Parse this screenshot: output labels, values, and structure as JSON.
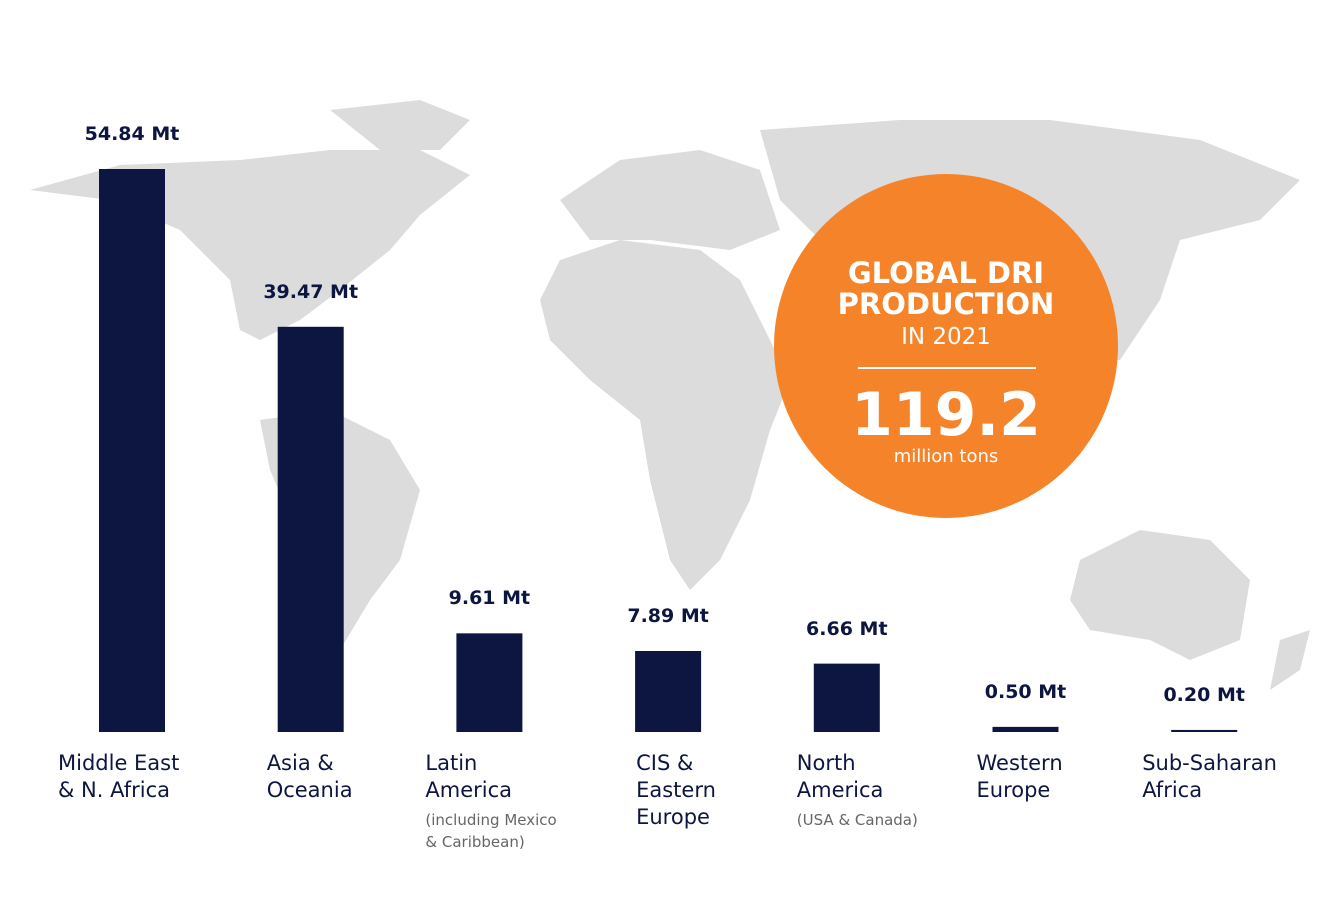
{
  "chart_data": {
    "type": "bar",
    "categories": [
      "Middle East\n& N. Africa",
      "Asia &\nOceania",
      "Latin\nAmerica",
      "CIS &\nEastern\nEurope",
      "North\nAmerica",
      "Western\nEurope",
      "Sub-Saharan\nAfrica"
    ],
    "category_notes": [
      null,
      null,
      "(including Mexico\n& Caribbean)",
      null,
      "(USA & Canada)",
      null,
      null
    ],
    "values": [
      54.84,
      39.47,
      9.61,
      7.89,
      6.66,
      0.5,
      0.2
    ],
    "value_labels": [
      "54.84 Mt",
      "39.47 Mt",
      "9.61 Mt",
      "7.89 Mt",
      "6.66 Mt",
      "0.50 Mt",
      "0.20 Mt"
    ],
    "color": "#0c1640",
    "callout": {
      "title": "GLOBAL DRI\nPRODUCTION",
      "subtitle": "IN 2021",
      "total": 119.2,
      "unit": "million tons",
      "color": "#f5832a"
    }
  }
}
